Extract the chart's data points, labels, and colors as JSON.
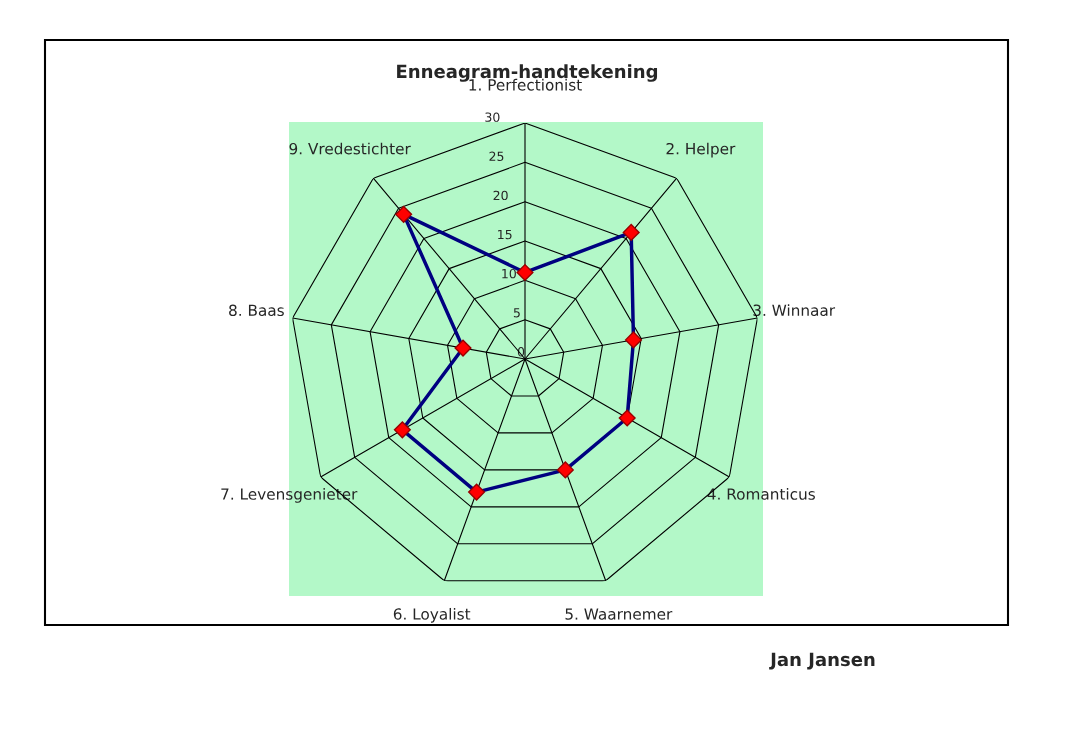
{
  "chart_data": {
    "type": "radar",
    "title": "Enneagram-handtekening",
    "categories": [
      "1. Perfectionist",
      "2. Helper",
      "3. Winnaar",
      "4. Romanticus",
      "5. Waarnemer",
      "6. Loyalist",
      "7. Levensgenieter",
      "8. Baas",
      "9. Vredestichter"
    ],
    "series": [
      {
        "color": "#000080",
        "values": [
          11,
          21,
          14,
          15,
          15,
          18,
          18,
          8,
          24
        ]
      }
    ],
    "ylim": [
      0,
      30
    ],
    "yticks": [
      0,
      5,
      10,
      15,
      20,
      25,
      30
    ],
    "grid": true,
    "marker": "diamond",
    "line_style": "solid",
    "annotations": [
      "Jan Jansen"
    ]
  }
}
